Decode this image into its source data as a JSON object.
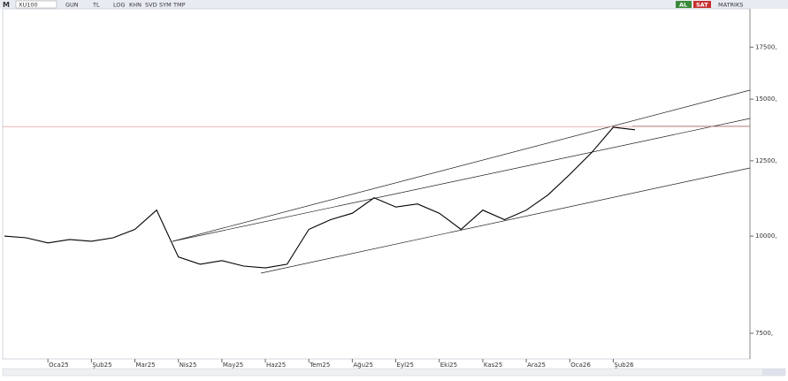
{
  "toolbar": {
    "logo": "M",
    "symbol": "XU100",
    "period": "GUN",
    "currency": "TL",
    "log": "LOG",
    "khn": "KHN",
    "svd": "SVD",
    "sym": "SYM",
    "tmp": "TMP",
    "buy": "AL",
    "sell": "SAT",
    "brand": "MATRIKS"
  },
  "chart_data": {
    "type": "line",
    "log_scale": true,
    "color": "#000000",
    "categories": [
      null,
      null,
      "Oca25",
      null,
      "Şub25",
      null,
      "Mar25",
      null,
      "Nis25",
      null,
      "May25",
      null,
      "Haz25",
      null,
      "Tem25",
      null,
      "Ağu25",
      null,
      "Eyl25",
      null,
      "Eki25",
      null,
      "Kas25",
      null,
      "Ara25",
      null,
      "Oca26",
      null,
      "Şub26",
      null
    ],
    "values": [
      10000,
      9950,
      9800,
      9900,
      9850,
      9950,
      10200,
      10800,
      9400,
      9200,
      9300,
      9150,
      9100,
      9200,
      10200,
      10500,
      10700,
      11200,
      10900,
      11000,
      10700,
      10200,
      10800,
      10500,
      10800,
      11300,
      12000,
      12800,
      13800,
      13700
    ],
    "ylim": [
      6970,
      19600
    ],
    "yticks": [
      {
        "value": 7500,
        "label": "7500,"
      },
      {
        "value": 10000,
        "label": "10000,"
      },
      {
        "value": 12500,
        "label": "12500,"
      },
      {
        "value": 15000,
        "label": "15000,"
      },
      {
        "value": 17500,
        "label": "17500,"
      }
    ],
    "hline": {
      "value": 13830,
      "color": "#e89a9a"
    }
  }
}
